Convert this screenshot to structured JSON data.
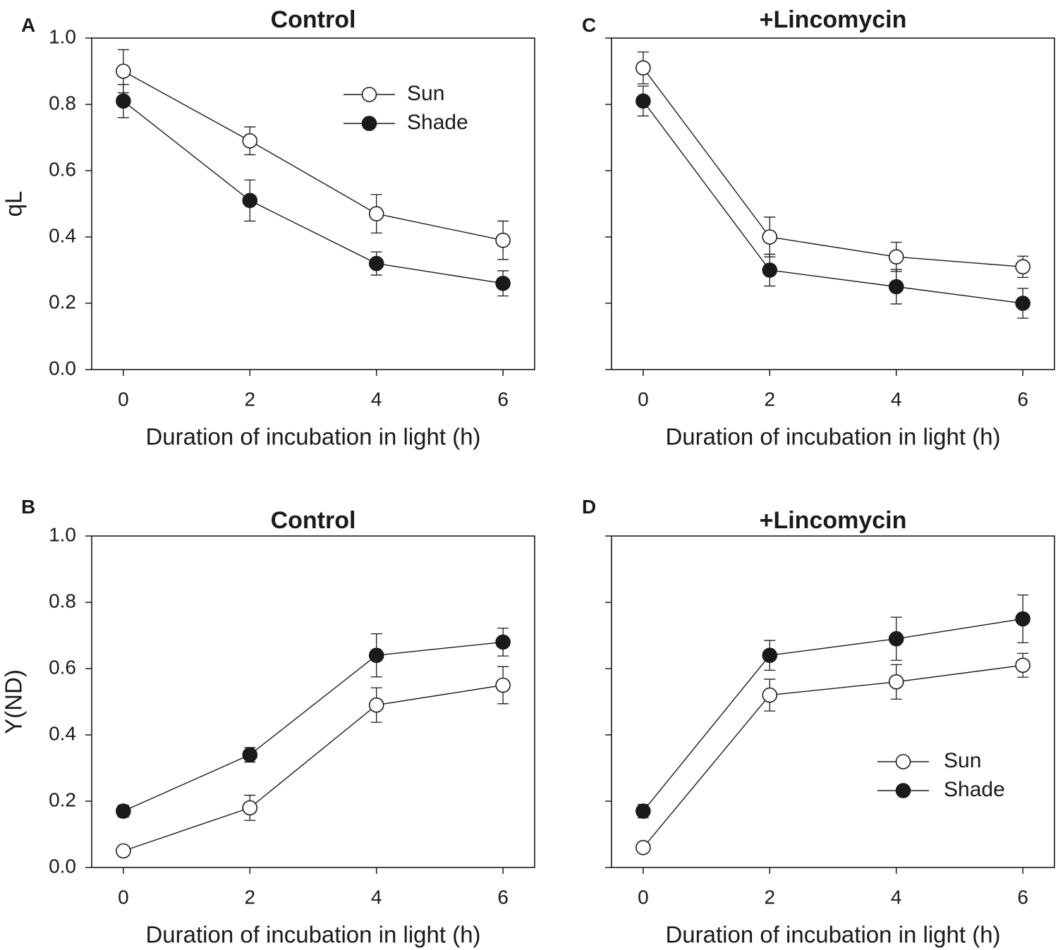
{
  "colors": {
    "sun_fill": "#ffffff",
    "shade_fill": "#1a1a1a",
    "stroke": "#1a1a1a"
  },
  "chart_data": [
    {
      "panel": "A",
      "type": "line",
      "title": "Control",
      "xlabel": "Duration of incubation in light (h)",
      "ylabel": "qL",
      "xlim": [
        -0.5,
        6.5
      ],
      "ylim": [
        0.0,
        1.0
      ],
      "x_ticks": [
        "0",
        "2",
        "4",
        "6"
      ],
      "y_ticks": [
        "0.0",
        "0.2",
        "0.4",
        "0.6",
        "0.8",
        "1.0"
      ],
      "show_y_tick_labels": true,
      "legend": {
        "position": "top-right",
        "entries": [
          "Sun",
          "Shade"
        ]
      },
      "x": [
        0,
        2,
        4,
        6
      ],
      "series": [
        {
          "name": "Sun",
          "marker": "open-circle",
          "values": [
            0.9,
            0.69,
            0.47,
            0.39
          ],
          "errors": [
            0.065,
            0.042,
            0.058,
            0.058
          ]
        },
        {
          "name": "Shade",
          "marker": "filled-circle",
          "values": [
            0.81,
            0.51,
            0.32,
            0.26
          ],
          "errors": [
            0.05,
            0.062,
            0.035,
            0.038
          ]
        }
      ]
    },
    {
      "panel": "C",
      "type": "line",
      "title": "+Lincomycin",
      "xlabel": "Duration of incubation in light (h)",
      "ylabel": "",
      "xlim": [
        -0.5,
        6.5
      ],
      "ylim": [
        0.0,
        1.0
      ],
      "x_ticks": [
        "0",
        "2",
        "4",
        "6"
      ],
      "y_ticks": [
        "0.0",
        "0.2",
        "0.4",
        "0.6",
        "0.8",
        "1.0"
      ],
      "show_y_tick_labels": false,
      "legend": null,
      "x": [
        0,
        2,
        4,
        6
      ],
      "series": [
        {
          "name": "Sun",
          "marker": "open-circle",
          "values": [
            0.91,
            0.4,
            0.34,
            0.31
          ],
          "errors": [
            0.048,
            0.06,
            0.044,
            0.032
          ]
        },
        {
          "name": "Shade",
          "marker": "filled-circle",
          "values": [
            0.81,
            0.3,
            0.25,
            0.2
          ],
          "errors": [
            0.045,
            0.048,
            0.052,
            0.045
          ]
        }
      ]
    },
    {
      "panel": "B",
      "type": "line",
      "title": "Control",
      "xlabel": "Duration of incubation in light (h)",
      "ylabel": "Y(ND)",
      "xlim": [
        -0.5,
        6.5
      ],
      "ylim": [
        0.0,
        1.0
      ],
      "x_ticks": [
        "0",
        "2",
        "4",
        "6"
      ],
      "y_ticks": [
        "0.0",
        "0.2",
        "0.4",
        "0.6",
        "0.8",
        "1.0"
      ],
      "show_y_tick_labels": true,
      "legend": null,
      "x": [
        0,
        2,
        4,
        6
      ],
      "series": [
        {
          "name": "Sun",
          "marker": "open-circle",
          "values": [
            0.05,
            0.18,
            0.49,
            0.55
          ],
          "errors": [
            0.008,
            0.038,
            0.052,
            0.056
          ]
        },
        {
          "name": "Shade",
          "marker": "filled-circle",
          "values": [
            0.17,
            0.34,
            0.64,
            0.68
          ],
          "errors": [
            0.018,
            0.022,
            0.065,
            0.042
          ]
        }
      ]
    },
    {
      "panel": "D",
      "type": "line",
      "title": "+Lincomycin",
      "xlabel": "Duration of incubation in light (h)",
      "ylabel": "",
      "xlim": [
        -0.5,
        6.5
      ],
      "ylim": [
        0.0,
        1.0
      ],
      "x_ticks": [
        "0",
        "2",
        "4",
        "6"
      ],
      "y_ticks": [
        "0.0",
        "0.2",
        "0.4",
        "0.6",
        "0.8",
        "1.0"
      ],
      "show_y_tick_labels": false,
      "legend": {
        "position": "bottom-right",
        "entries": [
          "Sun",
          "Shade"
        ]
      },
      "x": [
        0,
        2,
        4,
        6
      ],
      "series": [
        {
          "name": "Sun",
          "marker": "open-circle",
          "values": [
            0.06,
            0.52,
            0.56,
            0.61
          ],
          "errors": [
            0.008,
            0.048,
            0.052,
            0.036
          ]
        },
        {
          "name": "Shade",
          "marker": "filled-circle",
          "values": [
            0.17,
            0.64,
            0.69,
            0.75
          ],
          "errors": [
            0.02,
            0.045,
            0.065,
            0.072
          ]
        }
      ]
    }
  ]
}
